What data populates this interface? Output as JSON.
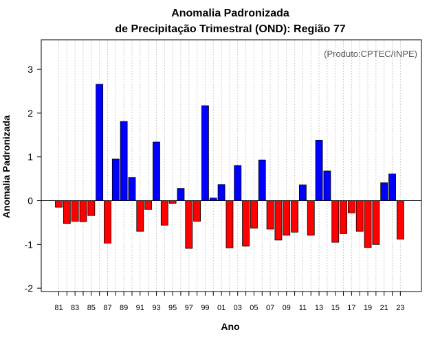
{
  "chart_data": {
    "type": "bar",
    "title_line1": "Anomalia Padronizada",
    "title_line2": "de Precipitação Trimestral (OND): Região 77",
    "xlabel": "Ano",
    "ylabel": "Anomalia Padronizada",
    "credit": "(Produto:CPTEC/INPE)",
    "ylim": [
      -2.1,
      3.65
    ],
    "yticks": [
      -2,
      -1,
      0,
      1,
      2,
      3
    ],
    "xtick_labels": [
      "81",
      "83",
      "85",
      "87",
      "89",
      "91",
      "93",
      "95",
      "97",
      "99",
      "01",
      "03",
      "05",
      "07",
      "09",
      "11",
      "13",
      "15",
      "17",
      "19",
      "21",
      "23"
    ],
    "positive_color": "#0000ff",
    "negative_color": "#ff0000",
    "years": [
      1981,
      1982,
      1983,
      1984,
      1985,
      1986,
      1987,
      1988,
      1989,
      1990,
      1991,
      1992,
      1993,
      1994,
      1995,
      1996,
      1997,
      1998,
      1999,
      2000,
      2001,
      2002,
      2003,
      2004,
      2005,
      2006,
      2007,
      2008,
      2009,
      2010,
      2011,
      2012,
      2013,
      2014,
      2015,
      2016,
      2017,
      2018,
      2019,
      2020,
      2021,
      2022,
      2023
    ],
    "values": [
      -0.15,
      -0.52,
      -0.47,
      -0.48,
      -0.34,
      2.66,
      -0.97,
      0.95,
      1.81,
      0.53,
      -0.7,
      -0.2,
      1.34,
      -0.56,
      -0.06,
      0.28,
      -1.09,
      -0.47,
      2.17,
      0.06,
      0.37,
      -1.08,
      0.8,
      -1.04,
      -0.63,
      0.93,
      -0.65,
      -0.9,
      -0.79,
      -0.72,
      0.36,
      -0.79,
      1.38,
      0.68,
      -0.95,
      -0.75,
      -0.28,
      -0.7,
      -1.07,
      -1.0,
      0.41,
      0.61,
      -0.88
    ]
  }
}
